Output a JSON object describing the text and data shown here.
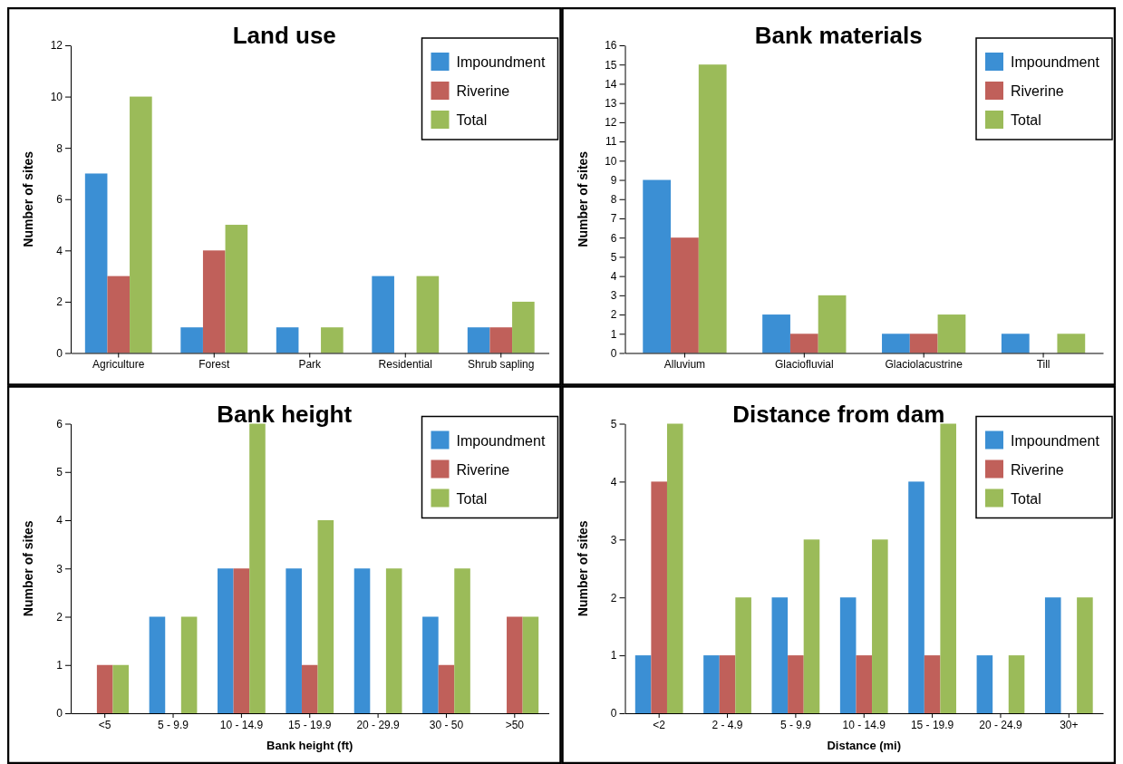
{
  "chart_data": [
    {
      "type": "bar",
      "title": "Land use",
      "ylabel": "Number of sites",
      "categories": [
        "Agriculture",
        "Forest",
        "Park",
        "Residential",
        "Shrub sapling"
      ],
      "series": [
        {
          "name": "Impoundment",
          "color": "#3b8fd4",
          "values": [
            7,
            1,
            1,
            3,
            1
          ]
        },
        {
          "name": "Riverine",
          "color": "#c0605a",
          "values": [
            3,
            4,
            0,
            0,
            1
          ]
        },
        {
          "name": "Total",
          "color": "#9bbb59",
          "values": [
            10,
            5,
            1,
            3,
            2
          ]
        }
      ],
      "ylim": [
        0,
        12
      ],
      "yticks": [
        0,
        2,
        4,
        6,
        8,
        10,
        12
      ],
      "legend": "top right",
      "grid": false
    },
    {
      "type": "bar",
      "title": "Bank materials",
      "ylabel": "Number of sites",
      "categories": [
        "Alluvium",
        "Glaciofluvial",
        "Glaciolacustrine",
        "Till"
      ],
      "series": [
        {
          "name": "Impoundment",
          "color": "#3b8fd4",
          "values": [
            9,
            2,
            1,
            1
          ]
        },
        {
          "name": "Riverine",
          "color": "#c0605a",
          "values": [
            6,
            1,
            1,
            0
          ]
        },
        {
          "name": "Total",
          "color": "#9bbb59",
          "values": [
            15,
            3,
            2,
            1
          ]
        }
      ],
      "ylim": [
        0,
        16
      ],
      "yticks": [
        0,
        1,
        2,
        3,
        4,
        5,
        6,
        7,
        8,
        9,
        10,
        11,
        12,
        13,
        14,
        15,
        16
      ],
      "legend": "top right",
      "grid": false
    },
    {
      "type": "bar",
      "title": "Bank height",
      "xlabel": "Bank height (ft)",
      "ylabel": "Number of sites",
      "categories": [
        "<5",
        "5 - 9.9",
        "10 - 14.9",
        "15 - 19.9",
        "20 - 29.9",
        "30 - 50",
        ">50"
      ],
      "series": [
        {
          "name": "Impoundment",
          "color": "#3b8fd4",
          "values": [
            0,
            2,
            3,
            3,
            3,
            2,
            0
          ]
        },
        {
          "name": "Riverine",
          "color": "#c0605a",
          "values": [
            1,
            0,
            3,
            1,
            0,
            1,
            2
          ]
        },
        {
          "name": "Total",
          "color": "#9bbb59",
          "values": [
            1,
            2,
            6,
            4,
            3,
            3,
            2
          ]
        }
      ],
      "ylim": [
        0,
        6
      ],
      "yticks": [
        0,
        1,
        2,
        3,
        4,
        5,
        6
      ],
      "legend": "top right",
      "grid": false
    },
    {
      "type": "bar",
      "title": "Distance from dam",
      "xlabel": "Distance (mi)",
      "ylabel": "Number of sites",
      "categories": [
        "<2",
        "2 - 4.9",
        "5 - 9.9",
        "10 - 14.9",
        "15 - 19.9",
        "20 - 24.9",
        "30+"
      ],
      "series": [
        {
          "name": "Impoundment",
          "color": "#3b8fd4",
          "values": [
            1,
            1,
            2,
            2,
            4,
            1,
            2
          ]
        },
        {
          "name": "Riverine",
          "color": "#c0605a",
          "values": [
            4,
            1,
            1,
            1,
            1,
            0,
            0
          ]
        },
        {
          "name": "Total",
          "color": "#9bbb59",
          "values": [
            5,
            2,
            3,
            3,
            5,
            1,
            2
          ]
        }
      ],
      "ylim": [
        0,
        5
      ],
      "yticks": [
        0,
        1,
        2,
        3,
        4,
        5
      ],
      "legend": "top right",
      "grid": false
    }
  ]
}
